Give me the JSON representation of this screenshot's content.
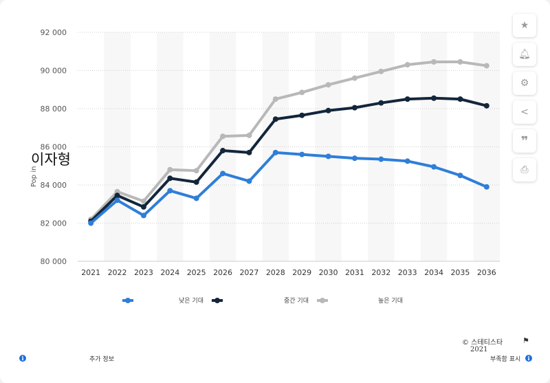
{
  "chart_data": {
    "type": "line",
    "categories": [
      "2021",
      "2022",
      "2023",
      "2024",
      "2025",
      "2026",
      "2027",
      "2028",
      "2029",
      "2030",
      "2031",
      "2032",
      "2033",
      "2034",
      "2035",
      "2036"
    ],
    "series": [
      {
        "name": "낮은 기대",
        "color": "#2f7ed8",
        "values": [
          82.0,
          83.2,
          82.4,
          83.7,
          83.3,
          84.6,
          84.2,
          85.7,
          85.6,
          85.5,
          85.4,
          85.35,
          85.25,
          84.95,
          84.5,
          83.9
        ]
      },
      {
        "name": "중간 기대",
        "color": "#13263b",
        "values": [
          82.1,
          83.45,
          82.85,
          84.35,
          84.15,
          85.8,
          85.7,
          87.45,
          87.65,
          87.9,
          88.05,
          88.3,
          88.5,
          88.55,
          88.5,
          88.15
        ]
      },
      {
        "name": "높은 기대",
        "color": "#b8b8b8",
        "values": [
          82.2,
          83.65,
          83.15,
          84.8,
          84.75,
          86.55,
          86.6,
          88.5,
          88.85,
          89.25,
          89.6,
          89.95,
          90.3,
          90.45,
          90.45,
          90.25
        ]
      }
    ],
    "yticks": [
      "80 000",
      "82 000",
      "84 000",
      "86 000",
      "88 000",
      "90 000",
      "92 000"
    ],
    "ylim": [
      80,
      92
    ],
    "ylabel": "Pop in",
    "grid": true,
    "legend_position": "bottom"
  },
  "overlay_name": "이자형",
  "sidebar": [
    "star-icon",
    "bell-icon",
    "gear-icon",
    "share-icon",
    "quote-icon",
    "print-icon"
  ],
  "footer": {
    "copyright": "© 스테티스타",
    "year": "2021",
    "more_info": "추가 정보",
    "show_source": "부족함 표시"
  },
  "colors": {
    "band": "#f7f7f7"
  }
}
